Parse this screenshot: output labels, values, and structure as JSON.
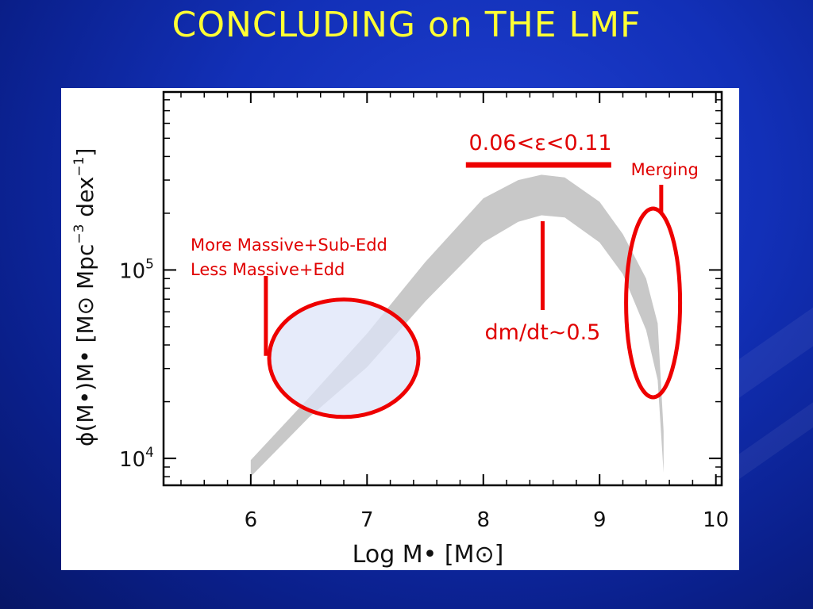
{
  "title": "CONCLUDING on THE LMF",
  "chart_data": {
    "type": "area",
    "ylabel_prefix": "ϕ(M•)M• [M⊙ Mpc",
    "ylabel_exp1": "−3",
    "ylabel_mid": " dex",
    "ylabel_exp2": "−1",
    "ylabel_suffix": "]",
    "xlabel": "Log M• [M⊙]",
    "xlim": [
      5.25,
      10.05
    ],
    "ylog": true,
    "ylim": [
      7200,
      880000
    ],
    "x_ticks": [
      {
        "value": 6,
        "label": "6"
      },
      {
        "value": 7,
        "label": "7"
      },
      {
        "value": 8,
        "label": "8"
      },
      {
        "value": 9,
        "label": "9"
      },
      {
        "value": 10,
        "label": "10"
      }
    ],
    "y_ticks": [
      {
        "value": 10000,
        "base": "10",
        "exp": "4"
      },
      {
        "value": 100000,
        "base": "10",
        "exp": "5"
      }
    ],
    "band": {
      "x": [
        6.0,
        6.5,
        7.0,
        7.5,
        8.0,
        8.3,
        8.5,
        8.7,
        9.0,
        9.2,
        9.4,
        9.5,
        9.55
      ],
      "upper": [
        9800,
        21000,
        46000,
        110000,
        240000,
        300000,
        320000,
        310000,
        230000,
        155000,
        90000,
        52000,
        14000
      ],
      "lower": [
        8000,
        16500,
        30500,
        68000,
        140000,
        180000,
        195000,
        190000,
        140000,
        95000,
        48000,
        26000,
        8400
      ]
    },
    "annotations": {
      "efficiency": "0.06<ε<0.11",
      "merging": "Merging",
      "massive_line1": "More Massive+Sub-Edd",
      "massive_line2": "Less Massive+Edd",
      "accretion": "dm/dt~0.5"
    },
    "colors": {
      "band": "#c8c8c8",
      "annotation": "#ee0000",
      "highlight_fill": "#dde4f8"
    }
  }
}
